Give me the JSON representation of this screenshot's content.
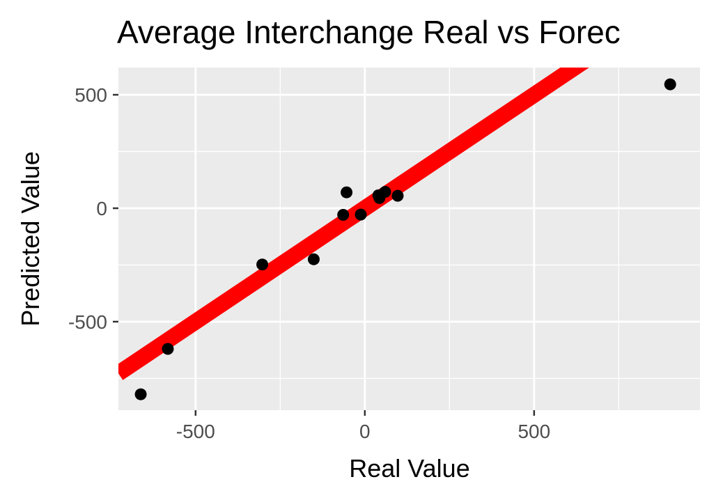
{
  "chart_data": {
    "type": "scatter",
    "title": "Average Interchange Real vs Forec",
    "xlabel": "Real Value",
    "ylabel": "Predicted Value",
    "xlim": [
      -728,
      990
    ],
    "ylim": [
      -890,
      620
    ],
    "x_ticks": [
      -500,
      0,
      500
    ],
    "x_tick_labels": [
      "-500",
      "0",
      "500"
    ],
    "y_ticks": [
      -500,
      0,
      500
    ],
    "y_tick_labels": [
      "-500",
      "0",
      "500"
    ],
    "grid": true,
    "panel_background": "#ebebeb",
    "point_color": "#000000",
    "points": [
      {
        "x": -662,
        "y": -820
      },
      {
        "x": -582,
        "y": -620
      },
      {
        "x": -303,
        "y": -248
      },
      {
        "x": -151,
        "y": -225
      },
      {
        "x": -64,
        "y": -29
      },
      {
        "x": -54,
        "y": 70
      },
      {
        "x": -12,
        "y": -28
      },
      {
        "x": 40,
        "y": 57
      },
      {
        "x": 43,
        "y": 45
      },
      {
        "x": 60,
        "y": 72
      },
      {
        "x": 97,
        "y": 55
      },
      {
        "x": 902,
        "y": 546
      }
    ],
    "reference_line": {
      "slope": 1,
      "intercept": 0,
      "color": "#ff0000"
    }
  }
}
